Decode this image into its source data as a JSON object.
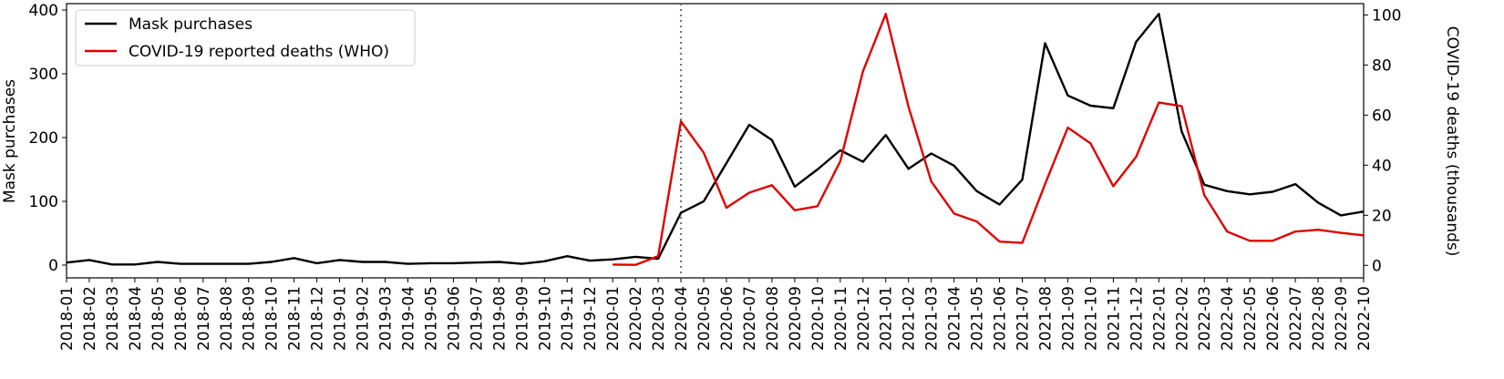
{
  "chart_data": {
    "type": "line",
    "x": [
      "2018-01",
      "2018-02",
      "2018-03",
      "2018-04",
      "2018-05",
      "2018-06",
      "2018-07",
      "2018-08",
      "2018-09",
      "2018-10",
      "2018-11",
      "2018-12",
      "2019-01",
      "2019-02",
      "2019-03",
      "2019-04",
      "2019-05",
      "2019-06",
      "2019-07",
      "2019-08",
      "2019-09",
      "2019-10",
      "2019-11",
      "2019-12",
      "2020-01",
      "2020-02",
      "2020-03",
      "2020-04",
      "2020-05",
      "2020-06",
      "2020-07",
      "2020-08",
      "2020-09",
      "2020-10",
      "2020-11",
      "2020-12",
      "2021-01",
      "2021-02",
      "2021-03",
      "2021-04",
      "2021-05",
      "2021-06",
      "2021-07",
      "2021-08",
      "2021-09",
      "2021-10",
      "2021-11",
      "2021-12",
      "2022-01",
      "2022-02",
      "2022-03",
      "2022-04",
      "2022-05",
      "2022-06",
      "2022-07",
      "2022-08",
      "2022-09",
      "2022-10"
    ],
    "series": [
      {
        "name": "Mask purchases",
        "color": "#000000",
        "axis": "y",
        "values": [
          4,
          8,
          1,
          1,
          5,
          2,
          2,
          2,
          2,
          5,
          11,
          3,
          8,
          5,
          5,
          2,
          3,
          3,
          4,
          5,
          2,
          6,
          14,
          7,
          9,
          13,
          10,
          82,
          100,
          160,
          220,
          196,
          123,
          150,
          180,
          162,
          204,
          151,
          175,
          156,
          116,
          95,
          134,
          348,
          266,
          250,
          246,
          350,
          394,
          210,
          126,
          116,
          111,
          115,
          127,
          98,
          78,
          84
        ]
      },
      {
        "name": "COVID-19 reported deaths (WHO)",
        "color": "#e00000",
        "axis": "y2",
        "values": [
          null,
          null,
          null,
          null,
          null,
          null,
          null,
          null,
          null,
          null,
          null,
          null,
          null,
          null,
          null,
          null,
          null,
          null,
          null,
          null,
          null,
          null,
          null,
          null,
          0.3,
          0.2,
          3.7,
          57.5,
          45,
          23,
          29,
          32,
          22,
          23.6,
          41.5,
          77.5,
          100.4,
          63.3,
          33.5,
          20.7,
          17.5,
          9.5,
          9,
          32.4,
          55,
          48.7,
          31.6,
          43.3,
          65,
          63.6,
          28,
          13.5,
          9.8,
          9.8,
          13.5,
          14.2,
          13,
          12
        ]
      }
    ],
    "ylabel": "Mask purchases",
    "y2label": "COVID-19 deaths (thousands)",
    "ylim": [
      -20,
      410
    ],
    "yticks": [
      0,
      100,
      200,
      300,
      400
    ],
    "y2lim": [
      -5,
      104.5
    ],
    "y2ticks": [
      0,
      20,
      40,
      60,
      80,
      100
    ],
    "vline": "2020-04",
    "legend": "upper-left",
    "grid": false
  }
}
